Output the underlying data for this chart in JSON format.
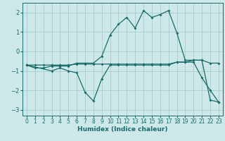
{
  "xlabel": "Humidex (Indice chaleur)",
  "background_color": "#cce8e8",
  "grid_color": "#aacccc",
  "line_color": "#1a6b6b",
  "xlim": [
    -0.5,
    23.5
  ],
  "ylim": [
    -3.3,
    2.5
  ],
  "xticks": [
    0,
    1,
    2,
    3,
    4,
    5,
    6,
    7,
    8,
    9,
    10,
    11,
    12,
    13,
    14,
    15,
    16,
    17,
    18,
    19,
    20,
    21,
    22,
    23
  ],
  "yticks": [
    -3,
    -2,
    -1,
    0,
    1,
    2
  ],
  "line1_upper": [
    [
      0,
      -0.7
    ],
    [
      1,
      -0.85
    ],
    [
      2,
      -0.85
    ],
    [
      3,
      -0.75
    ],
    [
      4,
      -0.75
    ],
    [
      5,
      -0.75
    ],
    [
      6,
      -0.6
    ],
    [
      7,
      -0.6
    ],
    [
      8,
      -0.6
    ],
    [
      9,
      -0.25
    ],
    [
      10,
      0.85
    ],
    [
      11,
      1.4
    ],
    [
      12,
      1.75
    ],
    [
      13,
      1.2
    ],
    [
      14,
      2.1
    ],
    [
      15,
      1.75
    ],
    [
      16,
      1.9
    ],
    [
      17,
      2.1
    ],
    [
      18,
      0.95
    ],
    [
      19,
      -0.45
    ],
    [
      20,
      -0.45
    ],
    [
      21,
      -0.45
    ],
    [
      22,
      -0.6
    ],
    [
      23,
      -0.6
    ]
  ],
  "line2_flat": [
    [
      0,
      -0.7
    ],
    [
      1,
      -0.7
    ],
    [
      2,
      -0.7
    ],
    [
      3,
      -0.7
    ],
    [
      4,
      -0.7
    ],
    [
      5,
      -0.7
    ],
    [
      6,
      -0.65
    ],
    [
      7,
      -0.65
    ],
    [
      8,
      -0.65
    ],
    [
      9,
      -0.65
    ],
    [
      10,
      -0.65
    ],
    [
      11,
      -0.65
    ],
    [
      12,
      -0.65
    ],
    [
      13,
      -0.65
    ],
    [
      14,
      -0.65
    ],
    [
      15,
      -0.65
    ],
    [
      16,
      -0.65
    ],
    [
      17,
      -0.65
    ],
    [
      18,
      -0.55
    ],
    [
      19,
      -0.55
    ],
    [
      20,
      -0.45
    ],
    [
      21,
      -0.45
    ],
    [
      22,
      -2.5
    ],
    [
      23,
      -2.6
    ]
  ],
  "line3_lower": [
    [
      0,
      -0.7
    ],
    [
      3,
      -1.0
    ],
    [
      4,
      -0.85
    ],
    [
      5,
      -1.0
    ],
    [
      6,
      -1.1
    ],
    [
      7,
      -2.1
    ],
    [
      8,
      -2.55
    ],
    [
      9,
      -1.4
    ],
    [
      10,
      -0.7
    ],
    [
      11,
      -0.7
    ],
    [
      12,
      -0.7
    ],
    [
      13,
      -0.7
    ],
    [
      14,
      -0.7
    ],
    [
      15,
      -0.7
    ],
    [
      16,
      -0.7
    ],
    [
      17,
      -0.7
    ],
    [
      18,
      -0.55
    ],
    [
      19,
      -0.55
    ],
    [
      20,
      -0.55
    ],
    [
      21,
      -1.35
    ],
    [
      22,
      -2.0
    ],
    [
      23,
      -2.6
    ]
  ]
}
